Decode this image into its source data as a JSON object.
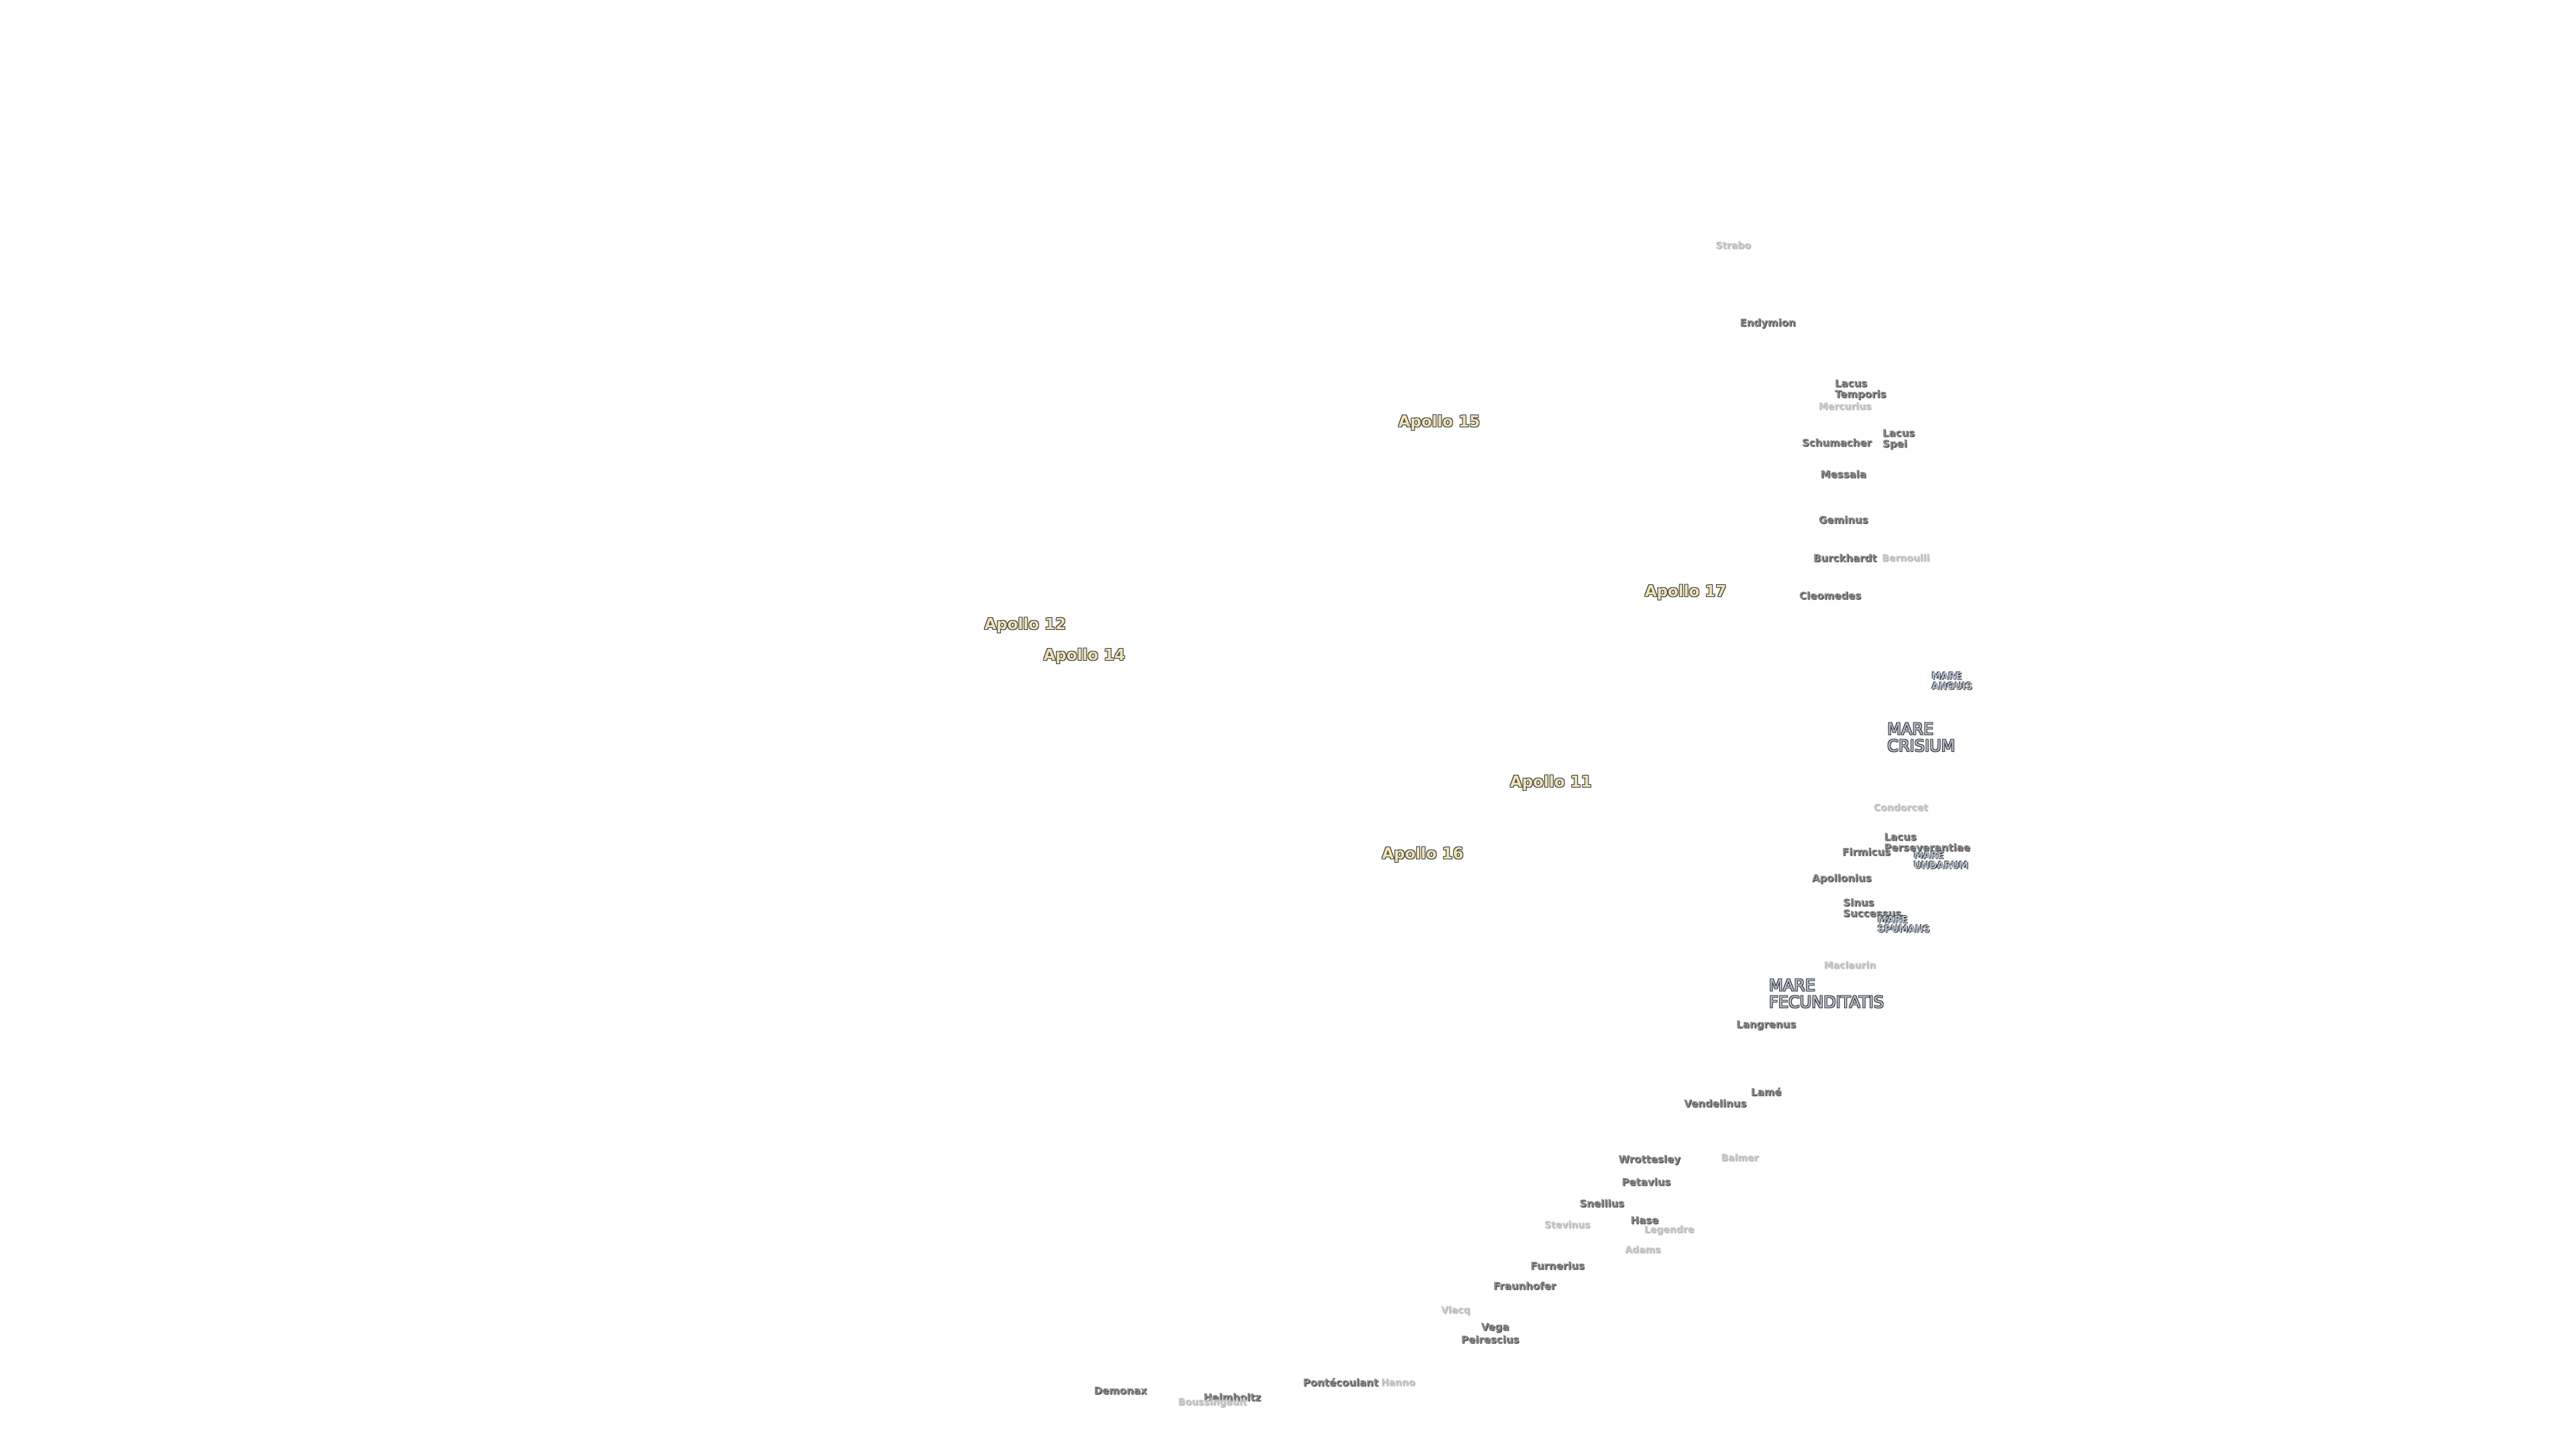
{
  "map": {
    "labels": [
      "Strabo",
      "Endymion",
      "Lacus Temporis",
      "Mercurius",
      "Apollo 15",
      "Schumacher",
      "Lacus Spei",
      "Messala",
      "Geminus",
      "Burckhardt",
      "Bernoulli",
      "Apollo 17",
      "Cleomedes",
      "Apollo 12",
      "Apollo 14",
      "MARE ANGUIS",
      "MARE CRISIUM",
      "Apollo 11",
      "Condorcet",
      "Lacus Perseverantiae",
      "Firmicus",
      "MARE UNDARUM",
      "Apollo 16",
      "Apollonius",
      "Sinus Successus",
      "MARE SPUMANS",
      "Maclaurin",
      "MARE FECUNDITATIS",
      "Langrenus",
      "Lamé",
      "Vendelinus",
      "Wrottesley",
      "Balmer",
      "Petavius",
      "Snellius",
      "Stevinus",
      "Hase",
      "Legendre",
      "Adams",
      "Furnerius",
      "Fraunhofer",
      "Vlacq",
      "Vega",
      "Peirescius",
      "Pontécoulant",
      "Hanno",
      "Demonax",
      "Helmholtz",
      "Boussingault"
    ]
  }
}
